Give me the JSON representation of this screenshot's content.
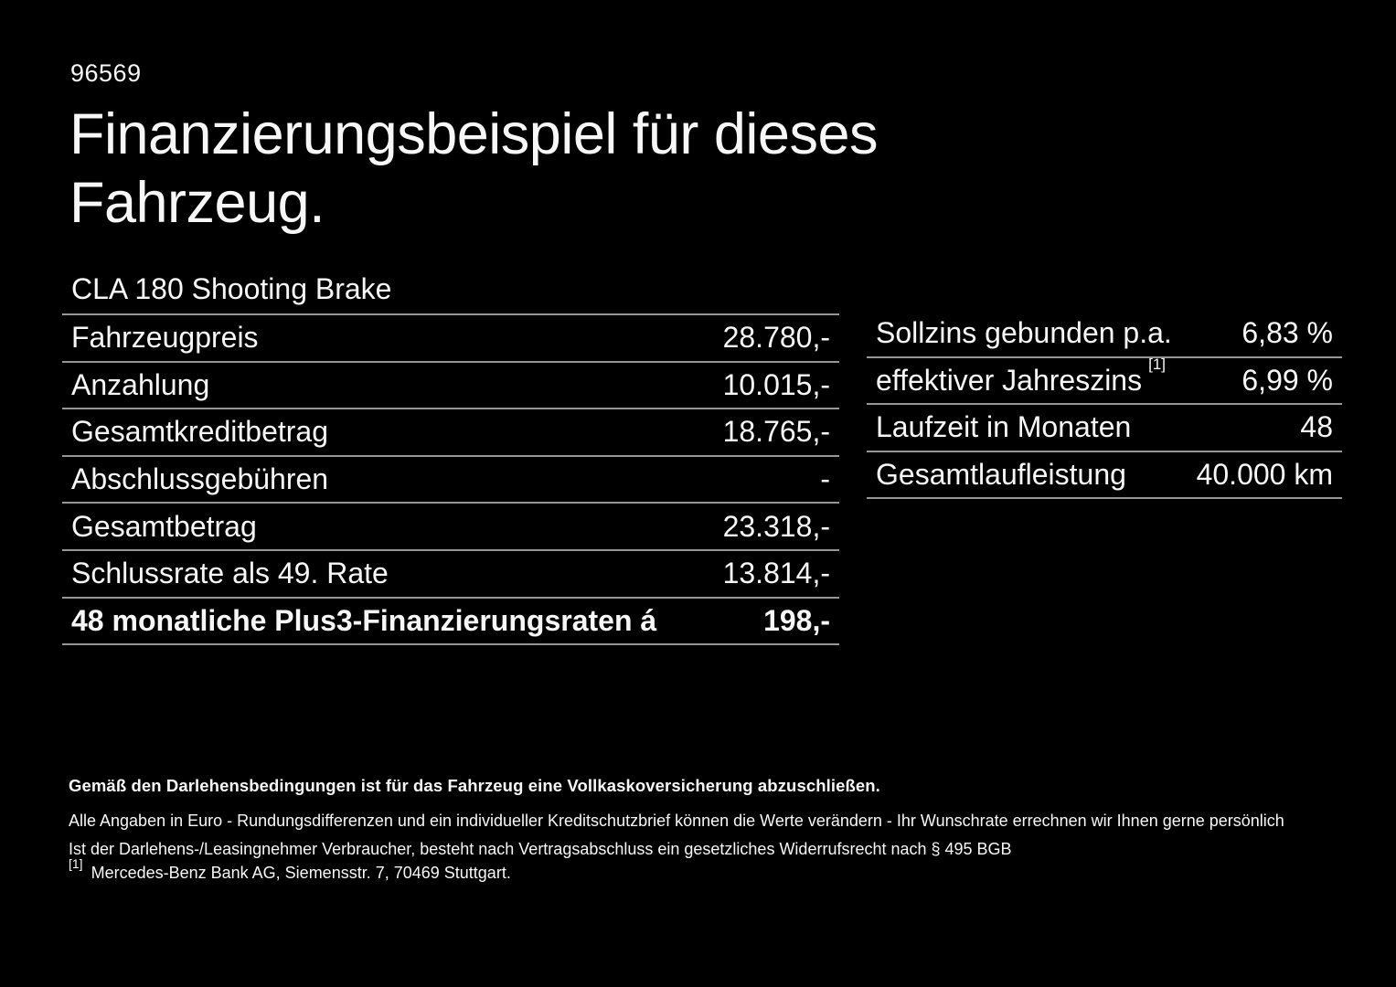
{
  "page": {
    "id_number": "96569",
    "title_line1": "Finanzierungsbeispiel für dieses",
    "title_line2": "Fahrzeug.",
    "vehicle_model": "CLA 180 Shooting Brake"
  },
  "colors": {
    "background": "#000000",
    "text": "#f7f7f7",
    "divider": "#969696"
  },
  "finance_table": {
    "rows": [
      {
        "label": "Fahrzeugpreis",
        "value": "28.780,-"
      },
      {
        "label": "Anzahlung",
        "value": "10.015,-"
      },
      {
        "label": "Gesamtkreditbetrag",
        "value": "18.765,-"
      },
      {
        "label": "Abschlussgebühren",
        "value": "-"
      },
      {
        "label": "Gesamtbetrag",
        "value": "23.318,-"
      },
      {
        "label": "Schlussrate als 49. Rate",
        "value": "13.814,-"
      },
      {
        "label": "48 monatliche Plus3-Finanzierungsraten á",
        "value": "198,-"
      }
    ]
  },
  "conditions_table": {
    "rows": [
      {
        "label": "Sollzins gebunden p.a.",
        "value": "6,83 %"
      },
      {
        "label": "effektiver Jahreszins",
        "footnote_marker": "[1]",
        "value": "6,99 %"
      },
      {
        "label": "Laufzeit in Monaten",
        "value": "48"
      },
      {
        "label": "Gesamtlaufleistung",
        "value": "40.000 km"
      }
    ]
  },
  "footer": {
    "insurance_note": "Gemäß den Darlehensbedingungen ist für das Fahrzeug eine Vollkaskoversicherung abzuschließen.",
    "disclaimer_line1": "Alle Angaben in Euro - Rundungsdifferenzen und ein individueller Kreditschutzbrief können die Werte verändern - Ihr Wunschrate errechnen wir Ihnen gerne persönlich",
    "disclaimer_line2": "Ist der Darlehens-/Leasingnehmer Verbraucher, besteht nach Vertragsabschluss ein gesetzliches Widerrufsrecht nach § 495 BGB",
    "footnote_marker": "[1]",
    "footnote_text": "Mercedes-Benz Bank AG, Siemensstr. 7, 70469 Stuttgart."
  }
}
